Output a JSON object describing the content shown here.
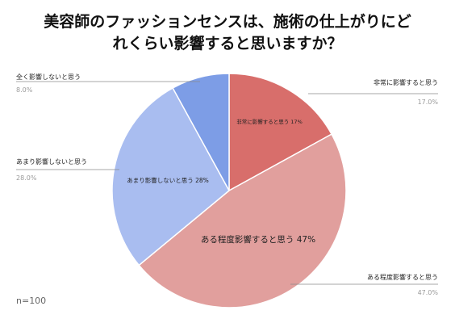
{
  "title_lines": [
    "美容師のファッションセンスは、施術の仕上がりにど",
    "れくらい影響すると思いますか？"
  ],
  "note": "n=100",
  "chart_data": {
    "type": "pie",
    "title": "美容師のファッションセンスは、施術の仕上がりにどれくらい影響すると思いますか？",
    "slices": [
      {
        "label": "非常に影響すると思う",
        "value": 17.0,
        "pct_text": "17.0%",
        "inner_text": "非常に影響すると思う 17%",
        "color": "#d86e6b"
      },
      {
        "label": "ある程度影響すると思う",
        "value": 47.0,
        "pct_text": "47.0%",
        "inner_text": "ある程度影響すると思う 47%",
        "color": "#e19f9d"
      },
      {
        "label": "あまり影響しないと思う",
        "value": 28.0,
        "pct_text": "28.0%",
        "inner_text": "あまり影響しないと思う 28%",
        "color": "#a9bdf0"
      },
      {
        "label": "全く影響しないと思う",
        "value": 8.0,
        "pct_text": "8.0%",
        "inner_text": "",
        "color": "#7d9de6"
      }
    ],
    "legend": "none"
  }
}
